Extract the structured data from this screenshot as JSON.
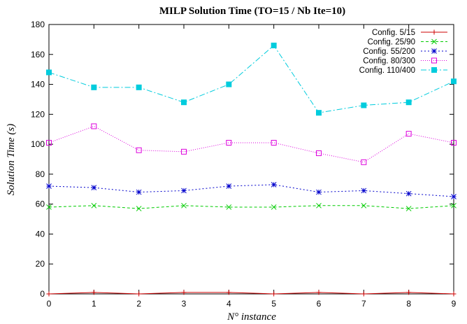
{
  "chart_data": {
    "type": "line",
    "title": "MILP Solution Time (TO=15 / Nb Ite=10)",
    "xlabel": "N° instance",
    "ylabel": "Solution Time (s)",
    "x": [
      0,
      1,
      2,
      3,
      4,
      5,
      6,
      7,
      8,
      9
    ],
    "xlim": [
      0,
      9
    ],
    "ylim": [
      0,
      180
    ],
    "xticks": [
      "0",
      "1",
      "2",
      "3",
      "4",
      "5",
      "6",
      "7",
      "8",
      "9"
    ],
    "yticks": [
      "0",
      "20",
      "40",
      "60",
      "80",
      "100",
      "120",
      "140",
      "160",
      "180"
    ],
    "grid": false,
    "legend_position": "top-right",
    "series": [
      {
        "name": "Config. 5/15",
        "color": "#cc0000",
        "dash": "",
        "marker": "plus",
        "values": [
          0,
          1,
          0,
          1,
          1,
          0,
          1,
          0,
          1,
          0
        ]
      },
      {
        "name": "Config. 25/90",
        "color": "#00cc00",
        "dash": "4,3",
        "marker": "cross",
        "values": [
          58,
          59,
          57,
          59,
          58,
          58,
          59,
          59,
          57,
          59
        ]
      },
      {
        "name": "Config. 55/200",
        "color": "#0000cc",
        "dash": "2,3",
        "marker": "star",
        "values": [
          72,
          71,
          68,
          69,
          72,
          73,
          68,
          69,
          67,
          65
        ]
      },
      {
        "name": "Config. 80/300",
        "color": "#dd00dd",
        "dash": "1,2",
        "marker": "square-open",
        "values": [
          101,
          112,
          96,
          95,
          101,
          101,
          94,
          88,
          107,
          101
        ]
      },
      {
        "name": "Config. 110/400",
        "color": "#00ccdd",
        "dash": "8,3,2,3",
        "marker": "square-filled",
        "values": [
          148,
          138,
          138,
          128,
          140,
          166,
          121,
          126,
          128,
          142
        ]
      }
    ]
  }
}
